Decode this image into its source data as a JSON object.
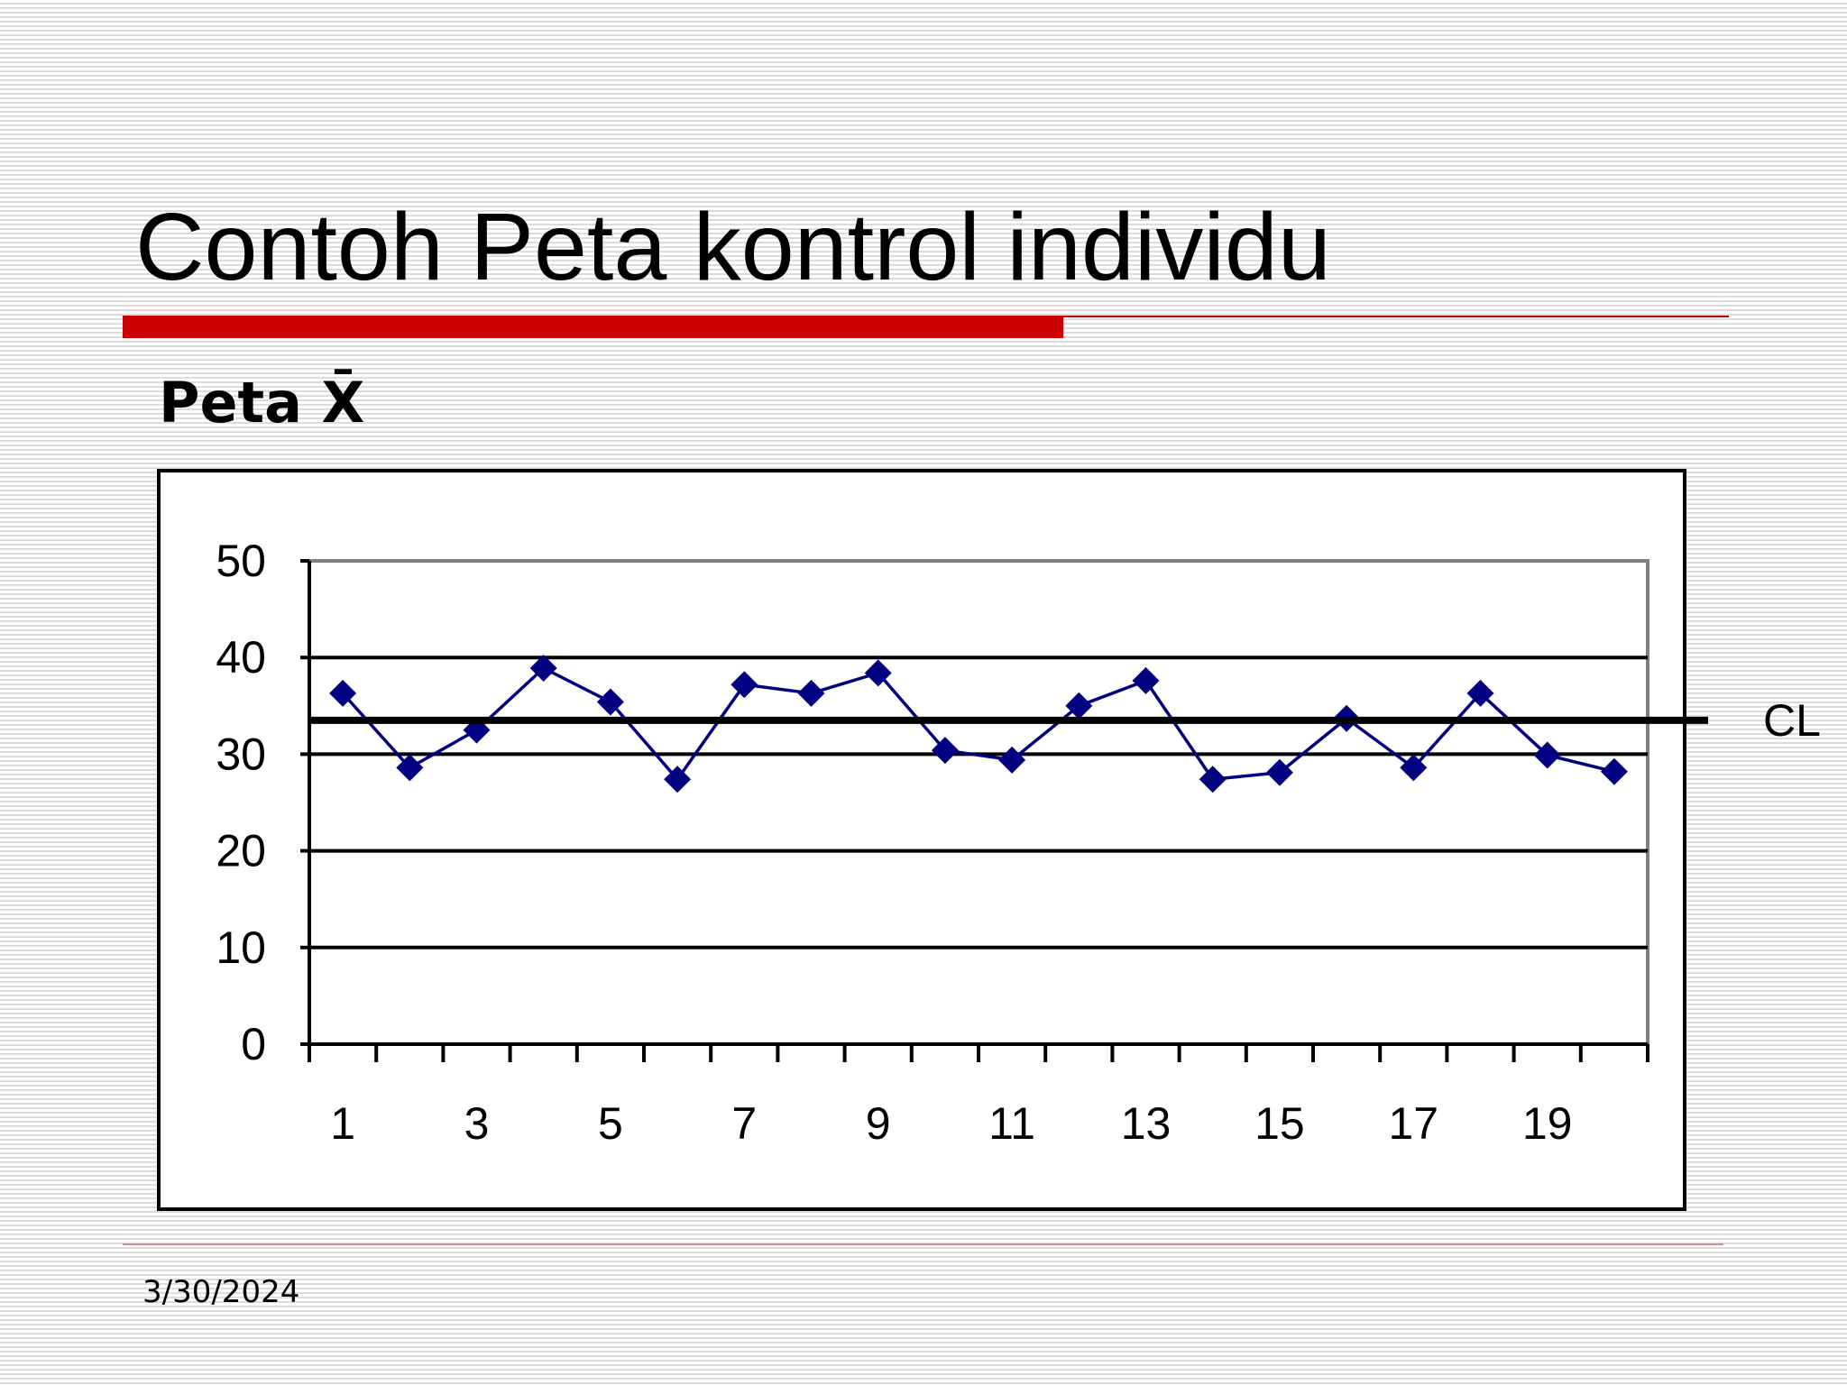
{
  "chart_data": {
    "type": "line",
    "title": "Contoh Peta kontrol individu",
    "subtitle": "Peta X̄",
    "footer": "3/30/2024",
    "categories": [
      1,
      null,
      3,
      null,
      5,
      null,
      7,
      null,
      9,
      null,
      11,
      null,
      13,
      null,
      15,
      null,
      17,
      null,
      19,
      null
    ],
    "series": [
      {
        "name": "X",
        "color": "#000080",
        "values": [
          36.3,
          28.6,
          32.5,
          38.9,
          35.4,
          27.4,
          37.2,
          36.3,
          38.4,
          30.4,
          29.4,
          35.0,
          37.6,
          27.4,
          28.1,
          33.7,
          28.6,
          36.3,
          29.9,
          28.2
        ]
      }
    ],
    "cl": {
      "label": "CL",
      "value": 33.5
    },
    "ylim": [
      0,
      50
    ],
    "yticks": [
      0,
      10,
      20,
      30,
      40,
      50
    ],
    "grid": true
  }
}
